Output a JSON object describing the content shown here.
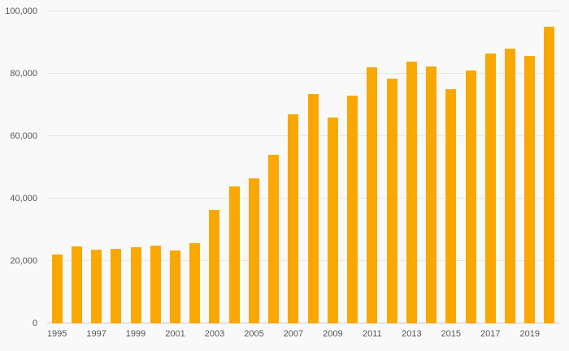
{
  "chart_data": {
    "type": "bar",
    "title": "",
    "xlabel": "",
    "ylabel": "",
    "ylim": [
      0,
      100000
    ],
    "grid": true,
    "legend": "none",
    "categories": [
      1995,
      1996,
      1997,
      1998,
      1999,
      2000,
      2001,
      2002,
      2003,
      2004,
      2005,
      2006,
      2007,
      2008,
      2009,
      2010,
      2011,
      2012,
      2013,
      2014,
      2015,
      2016,
      2017,
      2018,
      2019,
      2020
    ],
    "values": [
      22000,
      24800,
      23600,
      24000,
      24500,
      25000,
      23400,
      25700,
      36300,
      44000,
      46400,
      54000,
      67000,
      73400,
      66000,
      73000,
      82000,
      78400,
      83800,
      82300,
      75000,
      81000,
      86400,
      88000,
      85600,
      95000
    ],
    "yticks": [
      {
        "value": 0,
        "label": "0"
      },
      {
        "value": 20000,
        "label": "20,000"
      },
      {
        "value": 40000,
        "label": "40,000"
      },
      {
        "value": 60000,
        "label": "60,000"
      },
      {
        "value": 80000,
        "label": "80,000"
      },
      {
        "value": 100000,
        "label": "100,000"
      }
    ],
    "x_tick_labels": [
      "1995",
      "1997",
      "1999",
      "2001",
      "2003",
      "2005",
      "2007",
      "2009",
      "2011",
      "2013",
      "2015",
      "2017",
      "2019"
    ],
    "colors": {
      "bar": "#F8A801",
      "background": "#f9f9f9",
      "grid": "#e5e5e5",
      "axis_text": "#555555"
    }
  }
}
